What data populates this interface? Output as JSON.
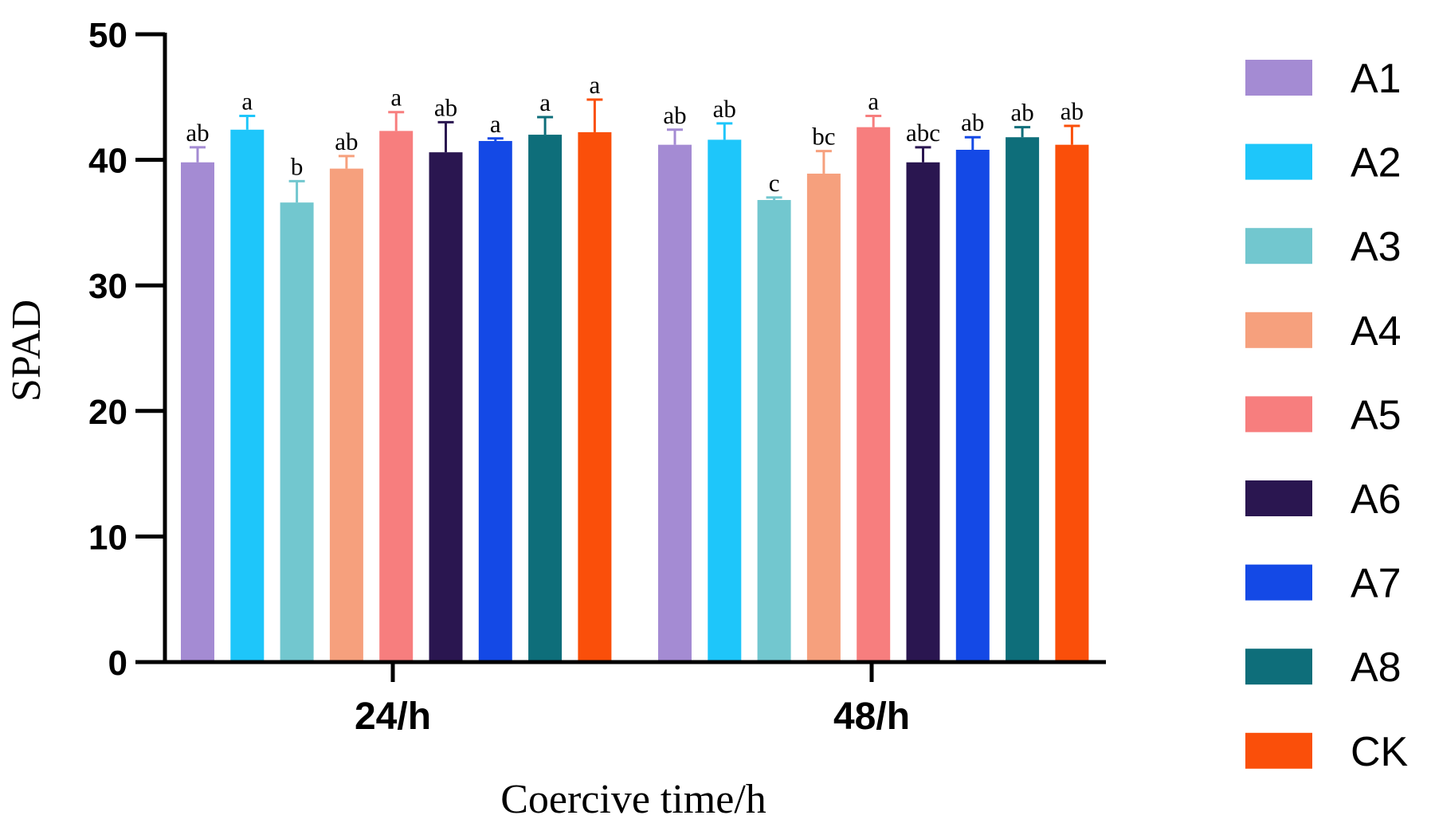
{
  "chart_data": {
    "type": "bar",
    "xlabel": "Coercive time/h",
    "ylabel": "SPAD",
    "ylim": [
      0,
      50
    ],
    "yticks": [
      0,
      10,
      20,
      30,
      40,
      50
    ],
    "categories": [
      "24/h",
      "48/h"
    ],
    "legend_position": "right",
    "series": [
      {
        "name": "A1",
        "color": "#A48BD3",
        "values": [
          39.8,
          41.2
        ],
        "errors": [
          1.2,
          1.2
        ],
        "labels": [
          "ab",
          "ab"
        ]
      },
      {
        "name": "A2",
        "color": "#1EC6FA",
        "values": [
          42.4,
          41.6
        ],
        "errors": [
          1.1,
          1.3
        ],
        "labels": [
          "a",
          "ab"
        ]
      },
      {
        "name": "A3",
        "color": "#72C7CF",
        "values": [
          36.6,
          36.8
        ],
        "errors": [
          1.7,
          0.2
        ],
        "labels": [
          "b",
          "c"
        ]
      },
      {
        "name": "A4",
        "color": "#F6A07D",
        "values": [
          39.3,
          38.9
        ],
        "errors": [
          1.0,
          1.8
        ],
        "labels": [
          "ab",
          "bc"
        ]
      },
      {
        "name": "A5",
        "color": "#F77E7E",
        "values": [
          42.3,
          42.6
        ],
        "errors": [
          1.5,
          0.9
        ],
        "labels": [
          "a",
          "a"
        ]
      },
      {
        "name": "A6",
        "color": "#2A1650",
        "values": [
          40.6,
          39.8
        ],
        "errors": [
          2.4,
          1.2
        ],
        "labels": [
          "ab",
          "abc"
        ]
      },
      {
        "name": "A7",
        "color": "#1449E6",
        "values": [
          41.5,
          40.8
        ],
        "errors": [
          0.2,
          1.0
        ],
        "labels": [
          "a",
          "ab"
        ]
      },
      {
        "name": "A8",
        "color": "#0E6E7A",
        "values": [
          42.0,
          41.8
        ],
        "errors": [
          1.4,
          0.8
        ],
        "labels": [
          "a",
          "ab"
        ]
      },
      {
        "name": "CK",
        "color": "#FA4F0A",
        "values": [
          42.2,
          41.2
        ],
        "errors": [
          2.6,
          1.5
        ],
        "labels": [
          "a",
          "ab"
        ]
      }
    ]
  }
}
